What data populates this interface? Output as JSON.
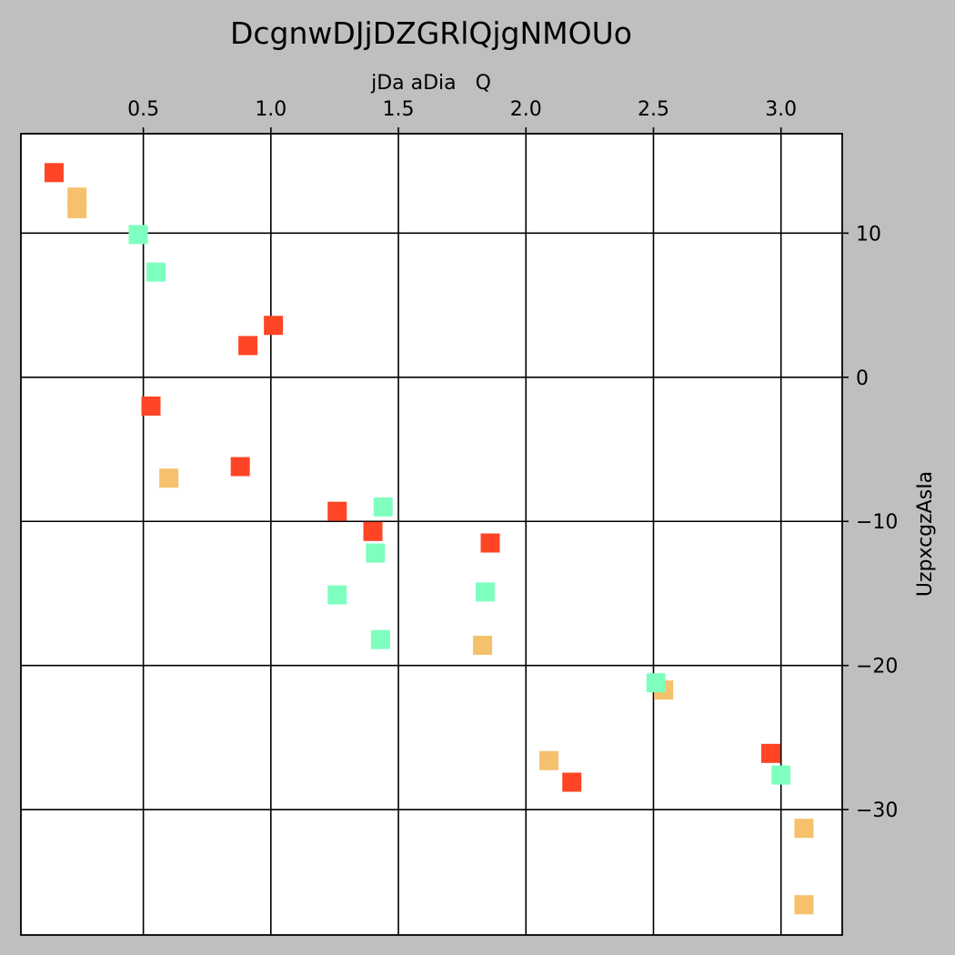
{
  "chart_data": {
    "type": "scatter",
    "title": "DcgnwDJjDZGRlQjgNMOUo",
    "xlabel": "jDa aDia   Q",
    "ylabel": "UzpxcgzAsIa",
    "xlim": [
      0.02,
      3.24
    ],
    "ylim": [
      -38.7,
      16.9
    ],
    "x_axis_position": "top",
    "y_axis_position": "right",
    "grid": true,
    "grid_color": "#000000",
    "plot_background": "#ffffff",
    "figure_background": "#bfbfbf",
    "marker": "square",
    "x_ticks": [
      0.5,
      1.0,
      1.5,
      2.0,
      2.5,
      3.0
    ],
    "x_tick_labels": [
      "0.5",
      "1.0",
      "1.5",
      "2.0",
      "2.5",
      "3.0"
    ],
    "y_ticks": [
      10,
      0,
      -10,
      -20,
      -30
    ],
    "y_tick_labels": [
      "10",
      "0",
      "−10",
      "−20",
      "−30"
    ],
    "series": [
      {
        "color": "#ff4525",
        "points": [
          {
            "x": 0.15,
            "y": 14.2
          },
          {
            "x": 1.01,
            "y": 3.6
          },
          {
            "x": 0.91,
            "y": 2.2
          },
          {
            "x": 0.53,
            "y": -2.0
          },
          {
            "x": 0.88,
            "y": -6.2
          },
          {
            "x": 1.26,
            "y": -9.3
          },
          {
            "x": 1.4,
            "y": -10.7
          },
          {
            "x": 1.86,
            "y": -11.5
          },
          {
            "x": 2.96,
            "y": -26.1
          },
          {
            "x": 2.18,
            "y": -28.1
          }
        ]
      },
      {
        "color": "#f5c16c",
        "points": [
          {
            "x": 0.24,
            "y": 12.5
          },
          {
            "x": 0.24,
            "y": 11.7
          },
          {
            "x": 0.6,
            "y": -7.0
          },
          {
            "x": 1.83,
            "y": -18.6
          },
          {
            "x": 2.54,
            "y": -21.7
          },
          {
            "x": 2.09,
            "y": -26.6
          },
          {
            "x": 3.09,
            "y": -31.3
          },
          {
            "x": 3.09,
            "y": -36.6
          }
        ]
      },
      {
        "color": "#7fffbf",
        "points": [
          {
            "x": 0.48,
            "y": 9.9
          },
          {
            "x": 0.55,
            "y": 7.3
          },
          {
            "x": 1.44,
            "y": -9.0
          },
          {
            "x": 1.41,
            "y": -12.2
          },
          {
            "x": 1.26,
            "y": -15.1
          },
          {
            "x": 1.84,
            "y": -14.9
          },
          {
            "x": 1.43,
            "y": -18.2
          },
          {
            "x": 2.51,
            "y": -21.2
          },
          {
            "x": 3.0,
            "y": -27.6
          }
        ]
      }
    ]
  }
}
